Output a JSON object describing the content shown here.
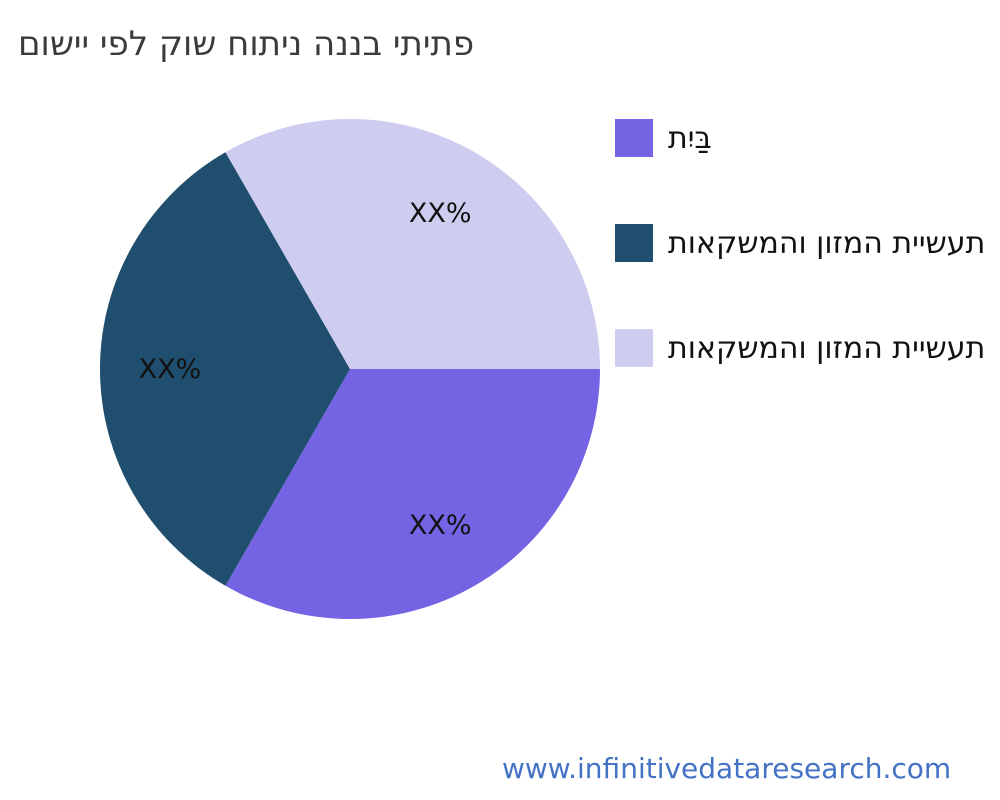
{
  "chart_data": {
    "type": "pie",
    "title": "פתיתי בננה ניתוח שוק לפי יישום",
    "legend_position": "right",
    "start_angle_deg": 0,
    "direction": "clockwise",
    "label_color": "#111111",
    "slices": [
      {
        "label": "בַּיִת",
        "value": 33.3,
        "value_label": "XX%",
        "color": "#7464e4"
      },
      {
        "label": "תעשיית המזון והמשקאות",
        "value": 33.4,
        "value_label": "XX%",
        "color": "#1f4e6f"
      },
      {
        "label": "תעשיית המזון והמשקאות",
        "value": 33.3,
        "value_label": "XX%",
        "color": "#cecdf0"
      }
    ]
  },
  "footer": {
    "url_text": "www.infinitivedataresearch.com",
    "color": "#4472c4"
  }
}
